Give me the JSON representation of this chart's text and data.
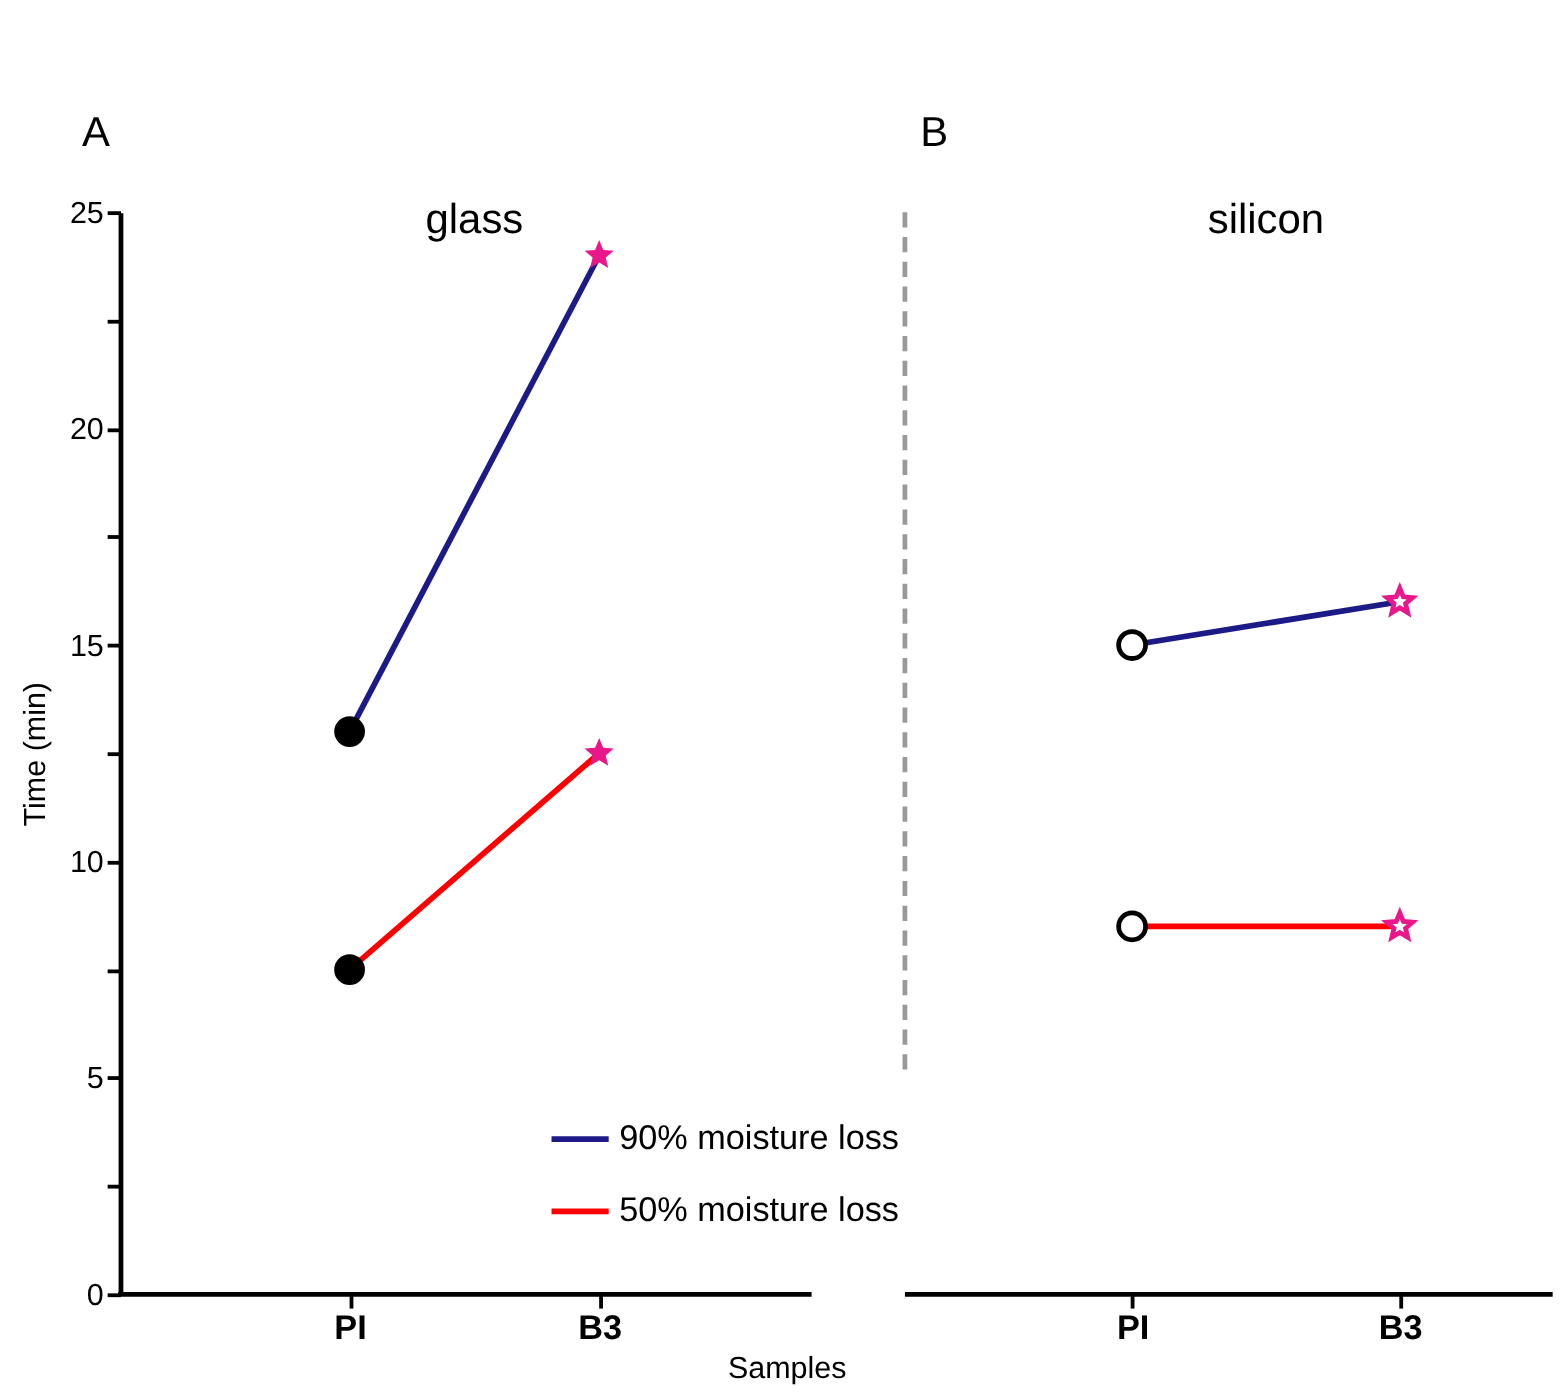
{
  "chart_data": [
    {
      "type": "line",
      "title": "A",
      "subtitle": "glass",
      "xlabel": "Samples",
      "ylabel": "Time (min)",
      "categories": [
        "PI",
        "B3"
      ],
      "ylim": [
        0,
        25
      ],
      "yticks": [
        0,
        {
          "value": 2.5,
          "label": null
        },
        5,
        {
          "value": 7.5,
          "label": null
        },
        10,
        {
          "value": 12.5,
          "label": null
        },
        15,
        {
          "value": 17.5,
          "label": null
        },
        20,
        {
          "value": 22.5,
          "label": null
        },
        25
      ],
      "grid": false,
      "legend": "bottom",
      "series": [
        {
          "name": "90% moisture loss",
          "color": "#1c1a87",
          "values": [
            13,
            24
          ],
          "marker": "none"
        },
        {
          "name": "50% moisture loss",
          "color": "#ff0000",
          "values": [
            7.5,
            12.5
          ],
          "marker": "none"
        },
        {
          "type": "scatter",
          "x": [
            "PI",
            "PI"
          ],
          "values": [
            13,
            7.5
          ],
          "color": "#000000",
          "marker": "circle"
        },
        {
          "type": "scatter",
          "x": [
            "B3",
            "B3"
          ],
          "values": [
            24,
            12.5
          ],
          "color": "#e8178a",
          "marker": "star"
        }
      ]
    },
    {
      "type": "line",
      "title": "B",
      "subtitle": "silicon",
      "categories": [
        "PI",
        "B3"
      ],
      "ylim": [
        0,
        25
      ],
      "tick_labels": "x",
      "grid": false,
      "series": [
        {
          "color": "#1c1a87",
          "values": [
            15,
            16
          ],
          "marker": "none"
        },
        {
          "color": "#ff0000",
          "values": [
            8.5,
            8.5
          ],
          "marker": "none"
        },
        {
          "type": "scatter",
          "x": [
            "PI",
            "PI"
          ],
          "values": [
            15,
            8.5
          ],
          "color": "#000000",
          "marker": "circle"
        },
        {
          "type": "scatter",
          "x": [
            "B3",
            "B3"
          ],
          "values": [
            16,
            8.5
          ],
          "color": "#e8178a",
          "marker": "star"
        }
      ]
    }
  ]
}
